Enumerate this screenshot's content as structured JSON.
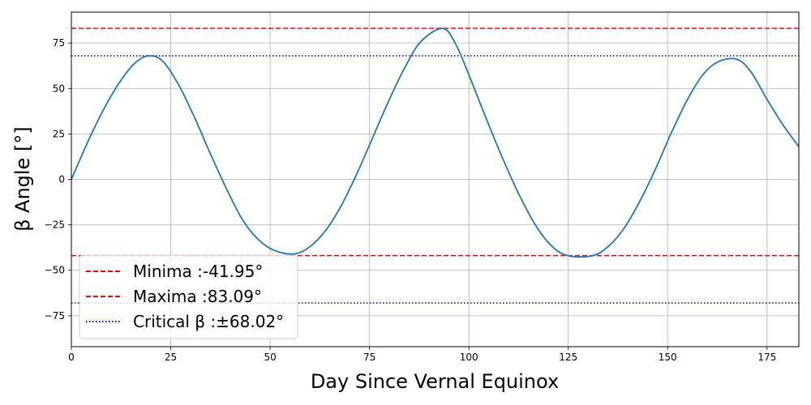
{
  "chart_data": {
    "type": "line",
    "title": "",
    "xlabel": "Day Since Vernal Equinox",
    "ylabel": "β Angle [°]",
    "xlim": [
      0,
      183
    ],
    "ylim": [
      -92,
      92
    ],
    "xticks": [
      0,
      25,
      50,
      75,
      100,
      125,
      150,
      175
    ],
    "yticks": [
      -75,
      -50,
      -25,
      0,
      25,
      50,
      75
    ],
    "grid": true,
    "legend_position": "lower-left",
    "series": [
      {
        "name": "",
        "color": "#1f77b4",
        "x": [
          0,
          4,
          8,
          12,
          16,
          19.5,
          23,
          27,
          31,
          35,
          39,
          43,
          47,
          51,
          56,
          60,
          64,
          68,
          72,
          76,
          80,
          84,
          88,
          93.5,
          97,
          101,
          105,
          109,
          113,
          117,
          121,
          125,
          131,
          135,
          139,
          143,
          147,
          151,
          155,
          159,
          163,
          167.5,
          171,
          175,
          179,
          183
        ],
        "y": [
          0,
          20,
          38,
          53,
          64,
          68,
          65,
          52,
          34,
          14,
          -5,
          -22,
          -33,
          -39,
          -41,
          -37,
          -28,
          -14,
          4,
          24,
          44,
          62,
          76,
          83,
          73,
          52,
          30,
          9,
          -10,
          -26,
          -37,
          -42,
          -42,
          -37,
          -27,
          -12,
          6,
          26,
          44,
          58,
          65,
          66,
          59,
          44,
          30,
          18
        ]
      }
    ],
    "reference_lines": [
      {
        "label": "Maxima :83.09°",
        "y": 83.09,
        "color": "#ff0000",
        "style": "dashed",
        "legend": true
      },
      {
        "label": "Minima :-41.95°",
        "y": -41.95,
        "color": "#ff0000",
        "style": "dashed",
        "legend": true
      },
      {
        "label": "Critical β :±68.02°",
        "y": 68.02,
        "color": "#0000cc",
        "style": "dotted",
        "legend": true
      },
      {
        "label": "",
        "y": -68.02,
        "color": "#0000cc",
        "style": "dotted",
        "legend": false
      }
    ],
    "legend": [
      {
        "label": "Minima :-41.95°",
        "color": "#ff0000",
        "style": "dashed"
      },
      {
        "label": "Maxima :83.09°",
        "color": "#ff0000",
        "style": "dashed"
      },
      {
        "label": "Critical β :±68.02°",
        "color": "#0000cc",
        "style": "dotted"
      }
    ]
  }
}
